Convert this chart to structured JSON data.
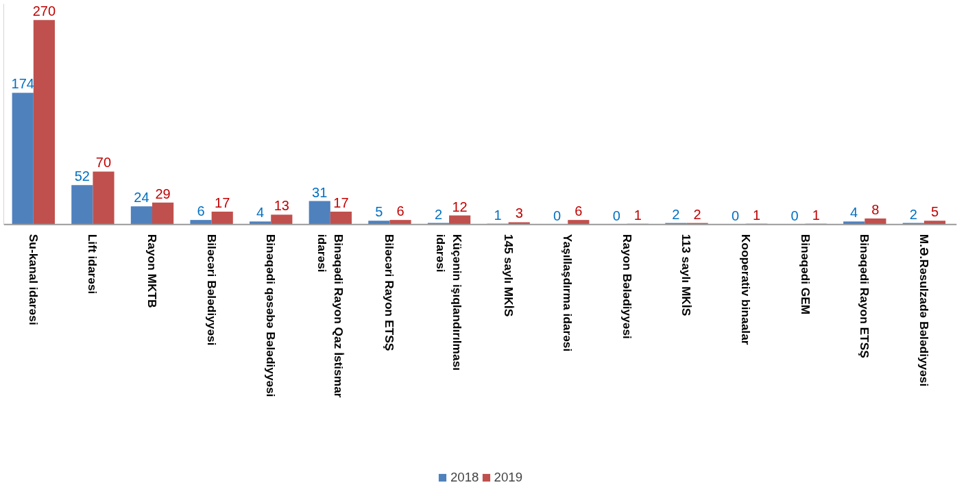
{
  "chart_data": {
    "type": "bar",
    "categories": [
      "Su-kanal idarəsi",
      "Lift idarəsi",
      "Rayon MKTB",
      "Biləcəri Bələdiyyəsi",
      "Binəqədi qəsəbə Bələdiyyəsi",
      "Binəqədi Rayon Qaz İstismar idarəsi",
      "Biləcəri Rayon ETSŞ",
      "Küçənin işıqlandırılması idarəsi",
      "145 saylı MKİS",
      "Yaşıllaşdırma idarəsi",
      "Rayon Bələdiyyəsi",
      "113 saylı MKİS",
      "Kooperativ binaalar",
      "Binəqədi GEM",
      "Binəqədi Rayon ETSŞ",
      "M.Ə.Rəsulzadə Bələdiyyəsi"
    ],
    "series": [
      {
        "name": "2018",
        "color": "#4f81bd",
        "values": [
          174,
          52,
          24,
          6,
          4,
          31,
          5,
          2,
          1,
          0,
          0,
          2,
          0,
          0,
          4,
          2
        ]
      },
      {
        "name": "2019",
        "color": "#c0504d",
        "values": [
          270,
          70,
          29,
          17,
          13,
          17,
          6,
          12,
          3,
          6,
          1,
          2,
          1,
          1,
          8,
          5
        ]
      }
    ],
    "data_labels": true,
    "legend": "bottom",
    "grid": false,
    "tick_labels": "x"
  }
}
